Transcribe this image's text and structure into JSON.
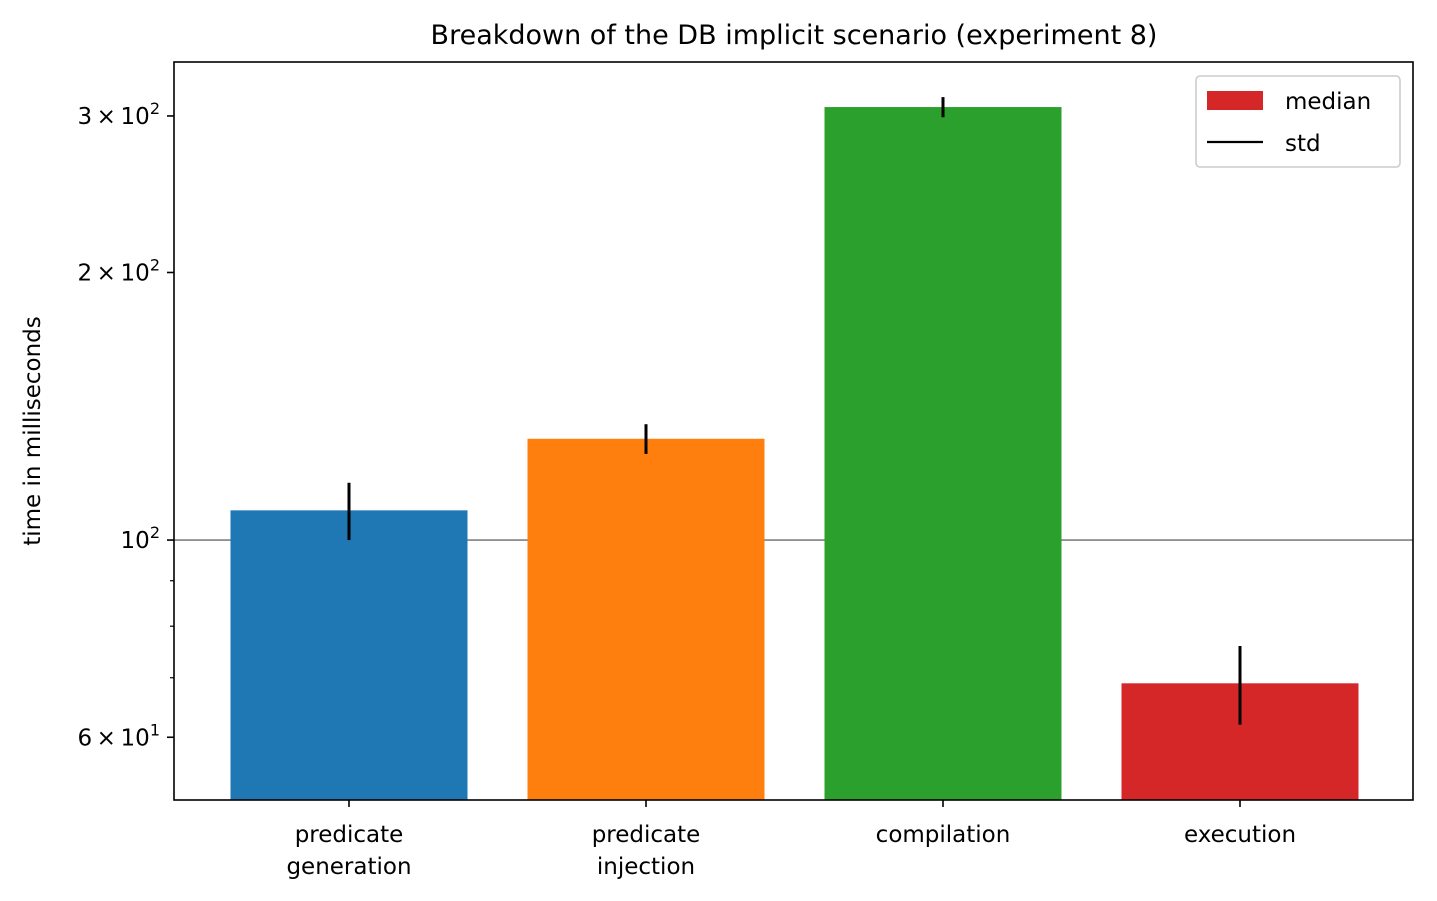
{
  "chart_data": {
    "type": "bar",
    "title": "Breakdown of the DB implicit scenario (experiment 8)",
    "xlabel": "",
    "ylabel": "time in milliseconds",
    "yscale": "log",
    "ylim": [
      51,
      345
    ],
    "categories": [
      [
        "predicate",
        "generation"
      ],
      [
        "predicate",
        "injection"
      ],
      [
        "compilation"
      ],
      [
        "execution"
      ]
    ],
    "series": [
      {
        "name": "median",
        "values": [
          108,
          130,
          307,
          69
        ],
        "std": [
          8,
          5,
          8,
          7
        ],
        "colors": [
          "#1f77b4",
          "#ff7f0e",
          "#2ca02c",
          "#d62728"
        ]
      }
    ],
    "error_series_name": "std",
    "reference_line": 100,
    "yticks_major": [
      {
        "value": 60,
        "mantissa": "6",
        "base": "10",
        "exp": "1"
      },
      {
        "value": 100,
        "mantissa": "",
        "base": "10",
        "exp": "2"
      },
      {
        "value": 200,
        "mantissa": "2",
        "base": "10",
        "exp": "2"
      },
      {
        "value": 300,
        "mantissa": "3",
        "base": "10",
        "exp": "2"
      }
    ],
    "yticks_minor": [
      70,
      80,
      90
    ],
    "legend": {
      "position": "top-right",
      "entries": [
        "median",
        "std"
      ]
    },
    "grid": false
  }
}
